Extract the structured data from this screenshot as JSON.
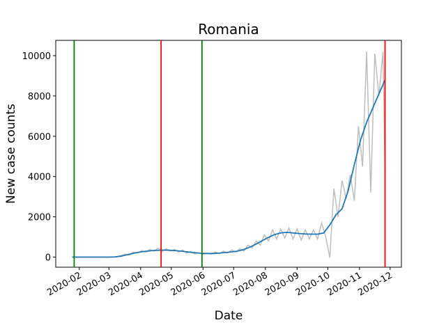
{
  "chart_data": {
    "type": "line",
    "title": "Romania",
    "xlabel": "Date",
    "ylabel": "New case counts",
    "xlim": [
      8,
      346
    ],
    "xticks": [
      {
        "value": 31,
        "label": "2020-02"
      },
      {
        "value": 60,
        "label": "2020-03"
      },
      {
        "value": 91,
        "label": "2020-04"
      },
      {
        "value": 121,
        "label": "2020-05"
      },
      {
        "value": 152,
        "label": "2020-06"
      },
      {
        "value": 182,
        "label": "2020-07"
      },
      {
        "value": 213,
        "label": "2020-08"
      },
      {
        "value": 244,
        "label": "2020-09"
      },
      {
        "value": 274,
        "label": "2020-10"
      },
      {
        "value": 305,
        "label": "2020-11"
      },
      {
        "value": 335,
        "label": "2020-12"
      }
    ],
    "ylim": [
      -500,
      10760
    ],
    "yticks": [
      0,
      2000,
      4000,
      6000,
      8000,
      10000
    ],
    "vlines": [
      {
        "x": 26,
        "color": "#008000"
      },
      {
        "x": 111,
        "color": "#ff0000"
      },
      {
        "x": 151,
        "color": "#008000"
      },
      {
        "x": 330,
        "color": "#ff0000"
      }
    ],
    "series": [
      {
        "color": "#bdbdbd",
        "x": [
          24,
          28,
          32,
          36,
          40,
          44,
          48,
          52,
          56,
          60,
          64,
          68,
          72,
          76,
          80,
          84,
          88,
          92,
          96,
          100,
          104,
          108,
          112,
          116,
          120,
          124,
          128,
          132,
          136,
          140,
          144,
          148,
          152,
          156,
          160,
          164,
          168,
          172,
          176,
          180,
          184,
          188,
          192,
          196,
          200,
          204,
          208,
          212,
          216,
          220,
          224,
          228,
          232,
          236,
          240,
          244,
          248,
          252,
          256,
          260,
          264,
          268,
          272,
          276,
          280,
          284,
          288,
          292,
          296,
          300,
          304,
          308,
          312,
          316,
          320,
          324,
          328,
          330
        ],
        "values": [
          0,
          0,
          0,
          0,
          0,
          0,
          0,
          0,
          0,
          0,
          5,
          30,
          80,
          150,
          100,
          250,
          200,
          320,
          250,
          380,
          300,
          450,
          280,
          420,
          300,
          380,
          250,
          350,
          200,
          280,
          150,
          220,
          130,
          200,
          150,
          260,
          170,
          300,
          200,
          350,
          250,
          420,
          300,
          600,
          450,
          800,
          600,
          1100,
          800,
          1350,
          900,
          1400,
          950,
          1450,
          900,
          1400,
          850,
          1350,
          900,
          1350,
          900,
          1700,
          1000,
          -30,
          3400,
          2000,
          3800,
          2900,
          4100,
          2800,
          6500,
          4500,
          10200,
          3200,
          10100,
          8000,
          10200,
          4200
        ]
      },
      {
        "color": "#1f77b4",
        "x": [
          24,
          30,
          36,
          42,
          48,
          54,
          60,
          66,
          72,
          78,
          84,
          90,
          96,
          102,
          108,
          114,
          120,
          126,
          132,
          138,
          144,
          150,
          156,
          162,
          168,
          174,
          180,
          186,
          192,
          198,
          204,
          210,
          216,
          222,
          228,
          234,
          240,
          246,
          252,
          258,
          264,
          270,
          276,
          282,
          288,
          294,
          300,
          306,
          312,
          318,
          324,
          330
        ],
        "values": [
          0,
          0,
          0,
          0,
          0,
          0,
          2,
          10,
          50,
          120,
          190,
          250,
          290,
          320,
          340,
          350,
          340,
          320,
          290,
          250,
          220,
          190,
          180,
          180,
          200,
          230,
          260,
          300,
          380,
          500,
          650,
          820,
          980,
          1120,
          1200,
          1230,
          1200,
          1170,
          1150,
          1140,
          1140,
          1200,
          1600,
          2100,
          2400,
          3300,
          4600,
          5800,
          6700,
          7400,
          8100,
          8800
        ]
      }
    ]
  }
}
